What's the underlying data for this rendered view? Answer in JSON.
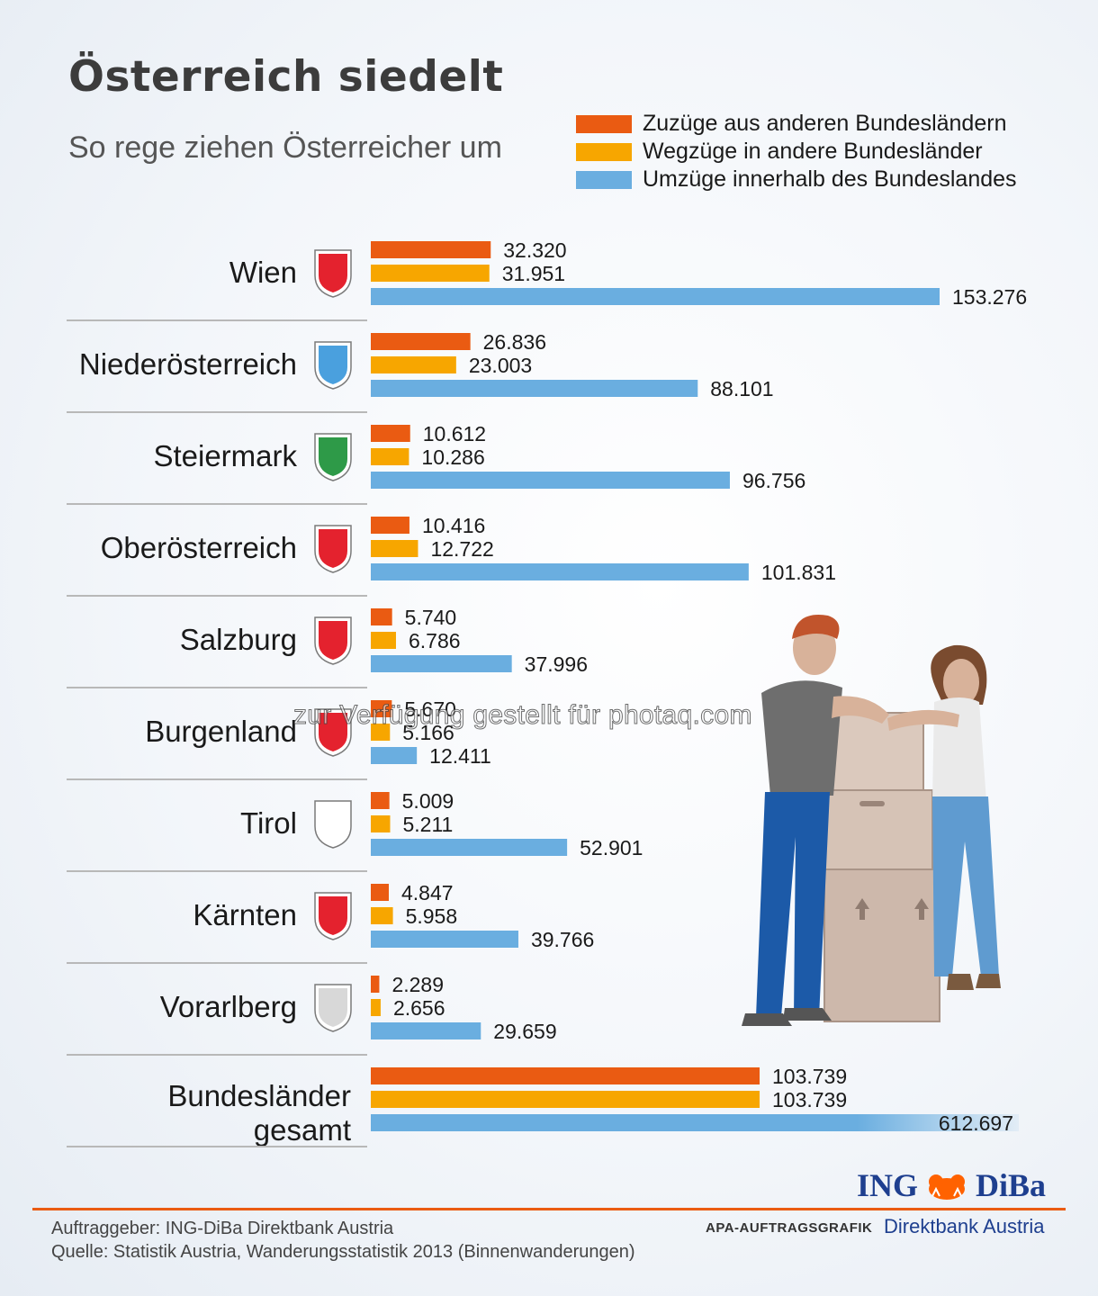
{
  "title": "Österreich siedelt",
  "subtitle": "So rege ziehen Österreicher um",
  "colors": {
    "zuzuege": "#ea5b12",
    "wegzuege": "#f7a600",
    "umzuege": "#6aaee0",
    "divider": "#b8b8b8"
  },
  "chart_data": {
    "type": "bar",
    "orientation": "horizontal",
    "categories": [
      "Wien",
      "Niederösterreich",
      "Steiermark",
      "Oberösterreich",
      "Salzburg",
      "Burgenland",
      "Tirol",
      "Kärnten",
      "Vorarlberg",
      "Bundesländer gesamt"
    ],
    "category_lines": [
      [
        "Wien"
      ],
      [
        "Niederösterreich"
      ],
      [
        "Steiermark"
      ],
      [
        "Oberösterreich"
      ],
      [
        "Salzburg"
      ],
      [
        "Burgenland"
      ],
      [
        "Tirol"
      ],
      [
        "Kärnten"
      ],
      [
        "Vorarlberg"
      ],
      [
        "Bundesländer",
        "gesamt"
      ]
    ],
    "series": [
      {
        "name": "Zuzüge aus anderen Bundesländern",
        "values": [
          32320,
          26836,
          10612,
          10416,
          5740,
          5670,
          5009,
          4847,
          2289,
          103739
        ],
        "labels": [
          "32.320",
          "26.836",
          "10.612",
          "10.416",
          "5.740",
          "5.670",
          "5.009",
          "4.847",
          "2.289",
          "103.739"
        ]
      },
      {
        "name": "Wegzüge in andere Bundesländer",
        "values": [
          31951,
          23003,
          10286,
          12722,
          6786,
          5166,
          5211,
          5958,
          2656,
          103739
        ],
        "labels": [
          "31.951",
          "23.003",
          "10.286",
          "12.722",
          "6.786",
          "5.166",
          "5.211",
          "5.958",
          "2.656",
          "103.739"
        ]
      },
      {
        "name": "Umzüge innerhalb des Bundeslandes",
        "values": [
          153276,
          88101,
          96756,
          101831,
          37996,
          12411,
          52901,
          39766,
          29659,
          612697
        ],
        "labels": [
          "153.276",
          "88.101",
          "96.756",
          "101.831",
          "37.996",
          "12.411",
          "52.901",
          "39.766",
          "29.659",
          "612.697"
        ]
      }
    ],
    "legend": "top-right",
    "grid": false
  },
  "watermark": "zur Verfügung gestellt für photaq.com",
  "footer": {
    "client": "Auftraggeber: ING-DiBa Direktbank Austria",
    "source": "Quelle: Statistik Austria, Wanderungsstatistik 2013 (Binnenwanderungen)",
    "apa": "APA-AUFTRAGSGRAFIK",
    "logo_left": "ING",
    "logo_right": "DiBa",
    "bank": "Direktbank Austria"
  }
}
